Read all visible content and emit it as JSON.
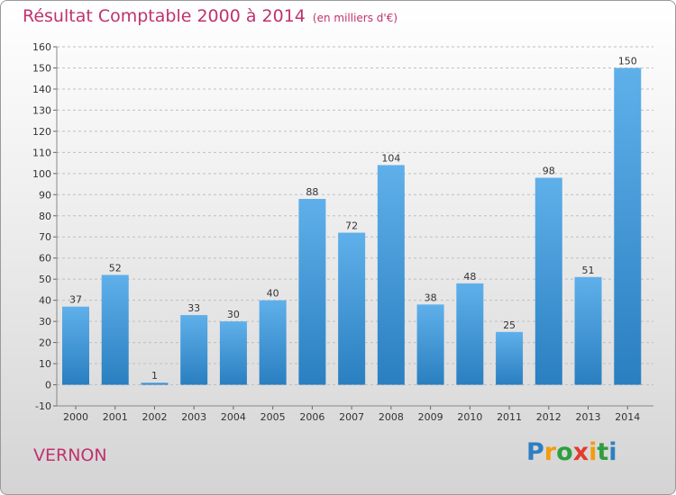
{
  "chart_data": {
    "type": "bar",
    "title": "Résultat Comptable 2000 à 2014",
    "subtitle": "(en milliers d'€)",
    "categories": [
      "2000",
      "2001",
      "2002",
      "2003",
      "2004",
      "2005",
      "2006",
      "2007",
      "2008",
      "2009",
      "2010",
      "2011",
      "2012",
      "2013",
      "2014"
    ],
    "values": [
      37,
      52,
      1,
      33,
      30,
      40,
      88,
      72,
      104,
      38,
      48,
      25,
      98,
      51,
      150
    ],
    "ylim": [
      -10,
      160
    ],
    "yticks": [
      -10,
      0,
      10,
      20,
      30,
      40,
      50,
      60,
      70,
      80,
      90,
      100,
      110,
      120,
      130,
      140,
      150,
      160
    ],
    "xlabel": "",
    "ylabel": "",
    "grid": true
  },
  "commune": "VERNON",
  "brand": {
    "letters": [
      "P",
      "r",
      "o",
      "x",
      "i",
      "t",
      "i"
    ],
    "colors": [
      "#2e7fc1",
      "#f39c12",
      "#2e9e3e",
      "#e23b2e",
      "#f39c12",
      "#2e9e3e",
      "#2e7fc1"
    ]
  },
  "colors": {
    "accent": "#c0326e",
    "bar_top": "#5fb0ea",
    "bar_bottom": "#2a7fc0",
    "grid": "#bfbfbf",
    "axis_text": "#333333"
  }
}
